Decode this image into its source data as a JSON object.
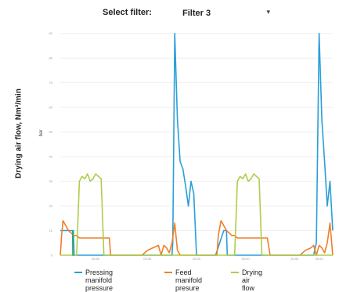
{
  "filter": {
    "label": "Select filter:",
    "value": "Filter 3"
  },
  "chart_data": {
    "type": "line",
    "ylabel": "Drying air flow, Nm³/min",
    "ylabel_unit": "bar",
    "y_ticks": [
      "90",
      "80",
      "70",
      "60",
      "50",
      "40",
      "30",
      "20",
      "10",
      "0"
    ],
    "x_ticks": [
      "00:00",
      "00:00",
      "00:00",
      "00:00",
      "00:00",
      "00:00"
    ],
    "ylim": [
      0,
      95
    ],
    "xlim": [
      0,
      100
    ],
    "grid": true,
    "legend_position": "bottom",
    "series": [
      {
        "name": "Pressing manifold\npressure",
        "color": "#2a9fd8",
        "x": [
          0,
          4.8,
          5.1,
          21,
          22,
          40,
          41,
          41.3,
          42,
          43,
          44,
          45,
          46,
          47,
          48,
          49,
          50,
          55,
          56,
          57,
          60,
          61,
          61.3,
          93,
          94,
          95,
          96,
          97,
          98,
          99,
          100
        ],
        "y": [
          10,
          10,
          0,
          0,
          0,
          0,
          0,
          5,
          90,
          55,
          38,
          35,
          28,
          20,
          30,
          25,
          0,
          0,
          0,
          0,
          10,
          10,
          0,
          0,
          5,
          90,
          55,
          38,
          20,
          30,
          10
        ]
      },
      {
        "name": "Feed manifold\npresure",
        "color": "#f07f2a",
        "x": [
          0,
          0.5,
          1,
          2,
          3,
          4,
          5,
          6,
          7,
          8,
          9,
          10,
          12,
          14,
          17.5,
          18,
          18.5,
          20,
          30,
          32,
          34,
          36,
          37,
          38,
          39,
          40,
          41,
          42,
          43,
          44,
          57.5,
          58,
          59,
          60,
          61,
          62,
          63,
          64,
          65,
          66,
          67,
          68,
          70,
          72,
          75.5,
          76,
          77,
          80,
          88,
          90,
          92,
          93,
          94,
          95,
          96,
          97,
          98,
          99,
          100
        ],
        "y": [
          0,
          8,
          14,
          12,
          10,
          9,
          8,
          8,
          7,
          7,
          7,
          7,
          7,
          7,
          7,
          7,
          0,
          0,
          0,
          2,
          3,
          4,
          0,
          4,
          3,
          1,
          5,
          13,
          2,
          0,
          0,
          8,
          14,
          12,
          10,
          9,
          8,
          8,
          7,
          7,
          7,
          7,
          7,
          7,
          7,
          7,
          0,
          0,
          0,
          2,
          3,
          4,
          0,
          4,
          3,
          1,
          5,
          13,
          0
        ]
      },
      {
        "name": "Drying air flow",
        "color": "#aecd4a",
        "x": [
          0,
          1,
          2,
          3,
          4,
          5,
          6,
          7,
          8,
          9,
          10,
          11,
          12,
          13,
          14,
          15,
          16,
          17,
          18,
          19,
          58,
          59,
          60,
          61,
          62,
          63,
          64,
          65,
          66,
          67,
          68,
          69,
          70,
          71,
          72,
          73,
          74,
          75,
          76,
          77,
          100
        ],
        "y": [
          0,
          0,
          0,
          0,
          0,
          0,
          0,
          30,
          32,
          31,
          33,
          30,
          31,
          33,
          32,
          31,
          0,
          0,
          0,
          0,
          0,
          0,
          0,
          0,
          0,
          0,
          0,
          30,
          32,
          31,
          33,
          30,
          31,
          33,
          32,
          31,
          0,
          0,
          0,
          0,
          0
        ]
      },
      {
        "name": "",
        "color": "#3aa56a",
        "x": [
          4.5,
          4.6,
          5.1
        ],
        "y": [
          10,
          0,
          0
        ]
      }
    ]
  }
}
